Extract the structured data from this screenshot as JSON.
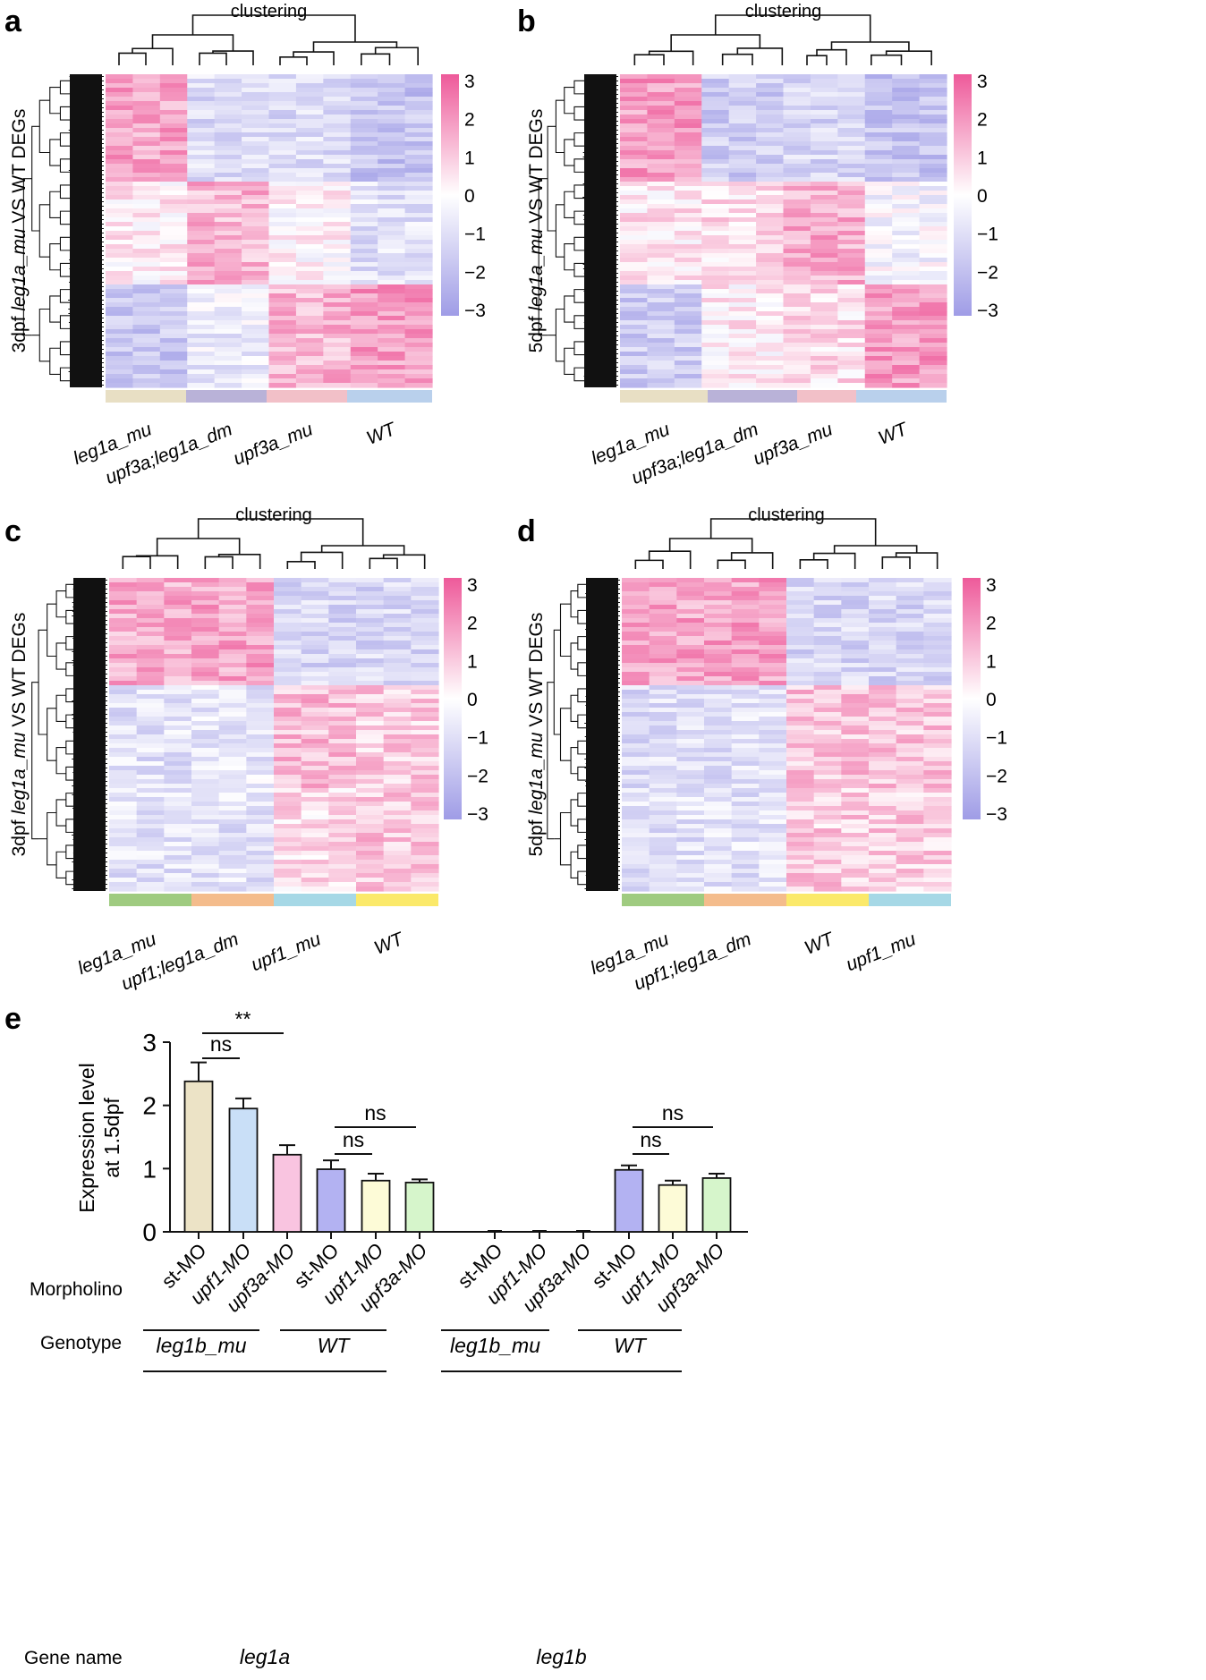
{
  "panels": [
    {
      "label": "a",
      "top_title": "clustering",
      "ylabel": "3dpf leg1a_mu VS WT DEGs",
      "ylabel_prefix": "3dpf ",
      "ylabel_italic": "leg1a_mu",
      "ylabel_suffix": " VS WT DEGs",
      "groups": [
        {
          "name": "leg1a_mu",
          "color": "#e8dfc4"
        },
        {
          "name": "upf3a;leg1a_dm",
          "color": "#b9b2d8"
        },
        {
          "name": "upf3a_mu",
          "color": "#f2c0c8"
        },
        {
          "name": "WT",
          "color": "#b9d0ec"
        }
      ],
      "colorbar_ticks": [
        "3",
        "2",
        "1",
        "0",
        "−1",
        "−2",
        "−3"
      ]
    },
    {
      "label": "b",
      "top_title": "clustering",
      "ylabel": "5dpf leg1a_mu VS WT DEGs",
      "ylabel_prefix": "5dpf ",
      "ylabel_italic": "leg1a_mu",
      "ylabel_suffix": " VS WT DEGs",
      "groups": [
        {
          "name": "leg1a_mu",
          "color": "#e8dfc4"
        },
        {
          "name": "upf3a;leg1a_dm",
          "color": "#b9b2d8"
        },
        {
          "name": "upf3a_mu",
          "color": "#f2c0c8"
        },
        {
          "name": "WT",
          "color": "#b9d0ec"
        }
      ],
      "colorbar_ticks": [
        "3",
        "2",
        "1",
        "0",
        "−1",
        "−2",
        "−3"
      ]
    },
    {
      "label": "c",
      "top_title": "clustering",
      "ylabel": "3dpf leg1a_mu VS WT DEGs",
      "ylabel_prefix": "3dpf ",
      "ylabel_italic": "leg1a_mu",
      "ylabel_suffix": " VS WT DEGs",
      "groups": [
        {
          "name": "leg1a_mu",
          "color": "#9fcb80"
        },
        {
          "name": "upf1;leg1a_dm",
          "color": "#f4bc8c"
        },
        {
          "name": "upf1_mu",
          "color": "#a6d8e6"
        },
        {
          "name": "WT",
          "color": "#fbe96a"
        }
      ],
      "colorbar_ticks": [
        "3",
        "2",
        "1",
        "0",
        "−1",
        "−2",
        "−3"
      ]
    },
    {
      "label": "d",
      "top_title": "clustering",
      "ylabel": "5dpf leg1a_mu VS WT DEGs",
      "ylabel_prefix": "5dpf ",
      "ylabel_italic": "leg1a_mu",
      "ylabel_suffix": " VS WT DEGs",
      "groups": [
        {
          "name": "leg1a_mu",
          "color": "#9fcb80"
        },
        {
          "name": "upf1;leg1a_dm",
          "color": "#f4bc8c"
        },
        {
          "name": "WT",
          "color": "#fbe96a"
        },
        {
          "name": "upf1_mu",
          "color": "#a6d8e6"
        }
      ],
      "colorbar_ticks": [
        "3",
        "2",
        "1",
        "0",
        "−1",
        "−2",
        "−3"
      ]
    }
  ],
  "heatmap_colors": {
    "high": "#ee5a9a",
    "mid": "#ffffff",
    "low": "#9f9ce6"
  },
  "panel_e": {
    "label": "e",
    "ylabel_line1": "Expression level",
    "ylabel_line2": "at 1.5dpf",
    "row_labels": {
      "morpholino": "Morpholino",
      "genotype": "Genotype",
      "gene": "Gene name"
    },
    "genotype_labels": [
      "leg1b_mu",
      "WT",
      "leg1b_mu",
      "WT"
    ],
    "gene_labels": [
      "leg1a",
      "leg1b"
    ],
    "significance": [
      {
        "text": "**"
      },
      {
        "text": "ns"
      },
      {
        "text": "ns"
      },
      {
        "text": "ns"
      },
      {
        "text": "ns"
      },
      {
        "text": "ns"
      }
    ]
  },
  "chart_data": {
    "type": "bar",
    "ylabel": "Expression level at 1.5dpf",
    "ylim": [
      0,
      3
    ],
    "yticks": [
      "0",
      "1",
      "2",
      "3"
    ],
    "categories": [
      "st-MO",
      "upf1-MO",
      "upf3a-MO",
      "st-MO",
      "upf1-MO",
      "upf3a-MO",
      "st-MO",
      "upf1-MO",
      "upf3a-MO",
      "st-MO",
      "upf1-MO",
      "upf3a-MO"
    ],
    "category_italic": [
      false,
      true,
      true,
      false,
      true,
      true,
      false,
      true,
      true,
      false,
      true,
      true
    ],
    "values": [
      2.38,
      1.95,
      1.22,
      0.99,
      0.81,
      0.78,
      0.0,
      0.0,
      0.0,
      0.98,
      0.74,
      0.85
    ],
    "errors": [
      0.3,
      0.16,
      0.15,
      0.14,
      0.11,
      0.05,
      0.0,
      0.0,
      0.0,
      0.07,
      0.07,
      0.07
    ],
    "colors": [
      "#ece3c6",
      "#c9dff7",
      "#f9c4e0",
      "#b3b2f2",
      "#fdfbd7",
      "#d6f5cb",
      "#ece3c6",
      "#c9dff7",
      "#f9c4e0",
      "#b3b2f2",
      "#fdfbd7",
      "#d6f5cb"
    ]
  }
}
